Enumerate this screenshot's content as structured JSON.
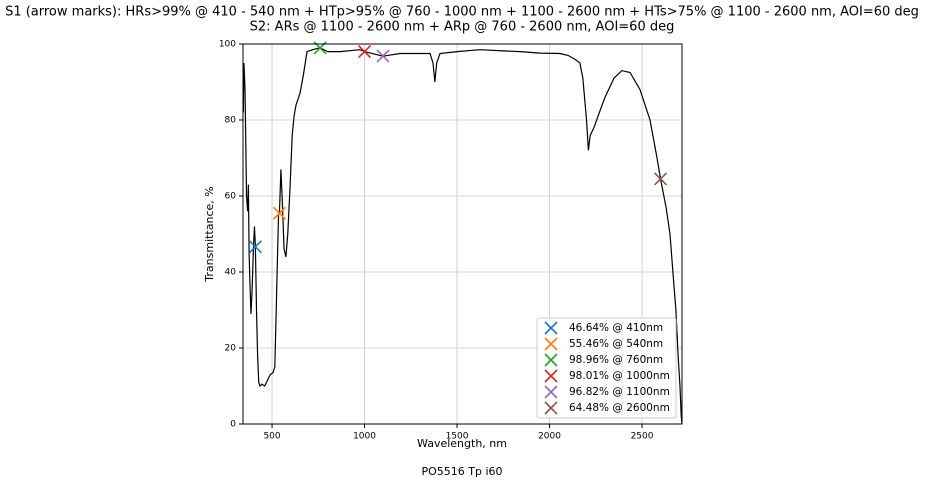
{
  "chart_data": {
    "type": "line",
    "title": "S1 (arrow marks): HRs>99% @ 410 - 540 nm + HTp>95% @ 760 - 1000 nm + 1100 - 2600 nm + HTs>75% @ 1100 - 2600 nm, AOI=60 deg",
    "subtitle": "S2: ARs @ 1100 - 2600 nm + ARp @ 760 - 2600 nm, AOI=60 deg",
    "x_label": "Wavelength, nm",
    "y_label": "Transmittance, %",
    "caption": "PO5516 Tp i60",
    "xlim": [
      343,
      2716
    ],
    "ylim": [
      0,
      100
    ],
    "xticks": [
      500,
      1000,
      1500,
      2000,
      2500
    ],
    "yticks": [
      0,
      20,
      40,
      60,
      80,
      100
    ],
    "grid": true,
    "legend": "lower right",
    "line": {
      "color": "#000000",
      "x": [
        345,
        348,
        354,
        362,
        368,
        372,
        376,
        380,
        386,
        392,
        400,
        405,
        410,
        416,
        422,
        428,
        435,
        445,
        460,
        475,
        490,
        505,
        515,
        525,
        535,
        540,
        548,
        556,
        565,
        575,
        585,
        597,
        609,
        619,
        630,
        651,
        670,
        689,
        720,
        760,
        800,
        870,
        975,
        1000,
        1083,
        1100,
        1192,
        1300,
        1354,
        1370,
        1380,
        1390,
        1408,
        1500,
        1624,
        1750,
        1840,
        1950,
        2056,
        2100,
        2137,
        2164,
        2180,
        2200,
        2210,
        2220,
        2240,
        2262,
        2300,
        2348,
        2391,
        2435,
        2489,
        2543,
        2581,
        2600,
        2630,
        2651,
        2670,
        2683,
        2695,
        2705,
        2712,
        2716
      ],
      "values": [
        82,
        95,
        88,
        60,
        56,
        63,
        45,
        38,
        29,
        35,
        47,
        52,
        46.6,
        30,
        18,
        11,
        10,
        10.5,
        10,
        11.5,
        13,
        13.5,
        15,
        35,
        55,
        55.5,
        67,
        58,
        46,
        44,
        50,
        62,
        76,
        81,
        84,
        87,
        92,
        98,
        98.5,
        99,
        98,
        98,
        98.5,
        98,
        97,
        96.8,
        97.5,
        97.5,
        97.5,
        95,
        90,
        95,
        97.5,
        98,
        98.5,
        98.2,
        98,
        97.6,
        97.5,
        97,
        96,
        95,
        91,
        80,
        72,
        76,
        78,
        81,
        86,
        91,
        93,
        92.5,
        88,
        80,
        70,
        64.5,
        57,
        50,
        38,
        30,
        18,
        10,
        2,
        0
      ]
    },
    "markers": [
      {
        "name": "46.64% @ 410nm",
        "color": "#1f77b4",
        "x": [
          410
        ],
        "values": [
          46.64
        ]
      },
      {
        "name": "55.46% @ 540nm",
        "color": "#ff7f0e",
        "x": [
          540
        ],
        "values": [
          55.46
        ]
      },
      {
        "name": "98.96% @ 760nm",
        "color": "#2ca02c",
        "x": [
          760
        ],
        "values": [
          98.96
        ]
      },
      {
        "name": "98.01% @ 1000nm",
        "color": "#d62728",
        "x": [
          1000
        ],
        "values": [
          98.01
        ]
      },
      {
        "name": "96.82% @ 1100nm",
        "color": "#9467bd",
        "x": [
          1100
        ],
        "values": [
          96.82
        ]
      },
      {
        "name": "64.48% @ 2600nm",
        "color": "#8c564b",
        "x": [
          2600
        ],
        "values": [
          64.48
        ]
      }
    ]
  }
}
